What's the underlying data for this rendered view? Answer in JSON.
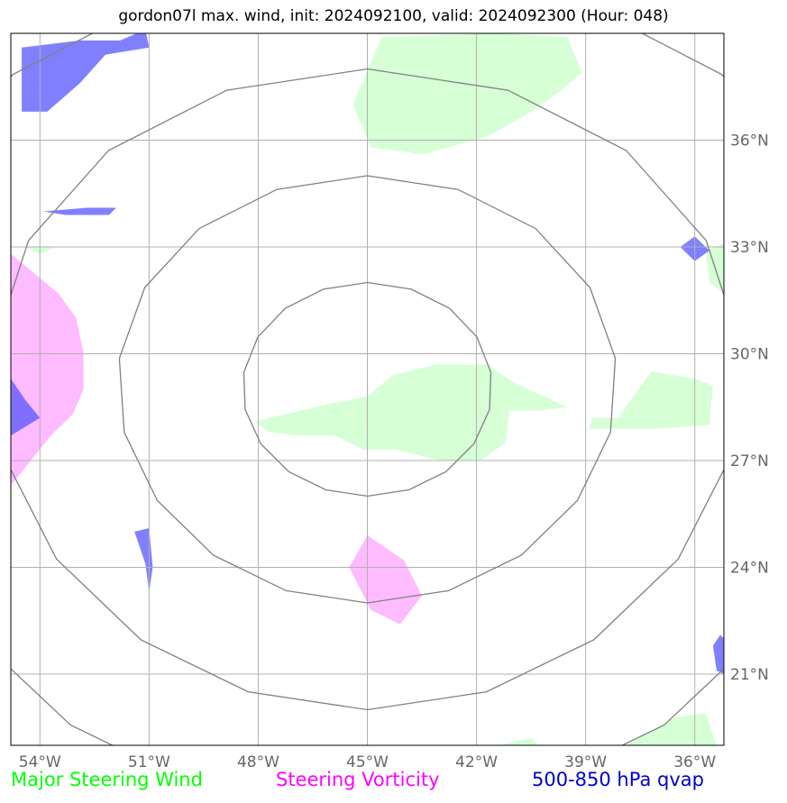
{
  "title": "gordon07l max. wind, init: 2024092100, valid: 2024092300 (Hour: 048)",
  "map": {
    "lon_range": [
      -54.8,
      -35.2
    ],
    "lat_range": [
      19.0,
      39.0
    ],
    "lon_ticks": [
      {
        "value": -54,
        "label": "54°W"
      },
      {
        "value": -51,
        "label": "51°W"
      },
      {
        "value": -48,
        "label": "48°W"
      },
      {
        "value": -45,
        "label": "45°W"
      },
      {
        "value": -42,
        "label": "42°W"
      },
      {
        "value": -39,
        "label": "39°W"
      },
      {
        "value": -36,
        "label": "36°W"
      }
    ],
    "lat_ticks": [
      {
        "value": 36,
        "label": "36°N"
      },
      {
        "value": 33,
        "label": "33°N"
      },
      {
        "value": 30,
        "label": "30°N"
      },
      {
        "value": 27,
        "label": "27°N"
      },
      {
        "value": 24,
        "label": "24°N"
      },
      {
        "value": 21,
        "label": "21°N"
      }
    ],
    "center": {
      "lon": -45,
      "lat": 29
    },
    "range_rings_deg": [
      3,
      6,
      9,
      12
    ],
    "ring_color": "#808080",
    "grid_color": "#b0b0b0"
  },
  "layers": {
    "steering_wind": {
      "color": "#ccffcc",
      "polygons": [
        [
          [
            -44.6,
            38.9
          ],
          [
            -41.4,
            39.0
          ],
          [
            -39.5,
            38.9
          ],
          [
            -39.1,
            37.9
          ],
          [
            -39.8,
            37.3
          ],
          [
            -40.5,
            36.8
          ],
          [
            -41.7,
            36.1
          ],
          [
            -43.5,
            35.6
          ],
          [
            -44.9,
            35.8
          ],
          [
            -45.4,
            37.0
          ]
        ],
        [
          [
            -48.1,
            28.1
          ],
          [
            -47.7,
            27.8
          ],
          [
            -46.9,
            27.7
          ],
          [
            -45.9,
            27.7
          ],
          [
            -45.1,
            27.3
          ],
          [
            -44.2,
            27.3
          ],
          [
            -43.0,
            27.0
          ],
          [
            -41.9,
            27.0
          ],
          [
            -41.2,
            27.5
          ],
          [
            -41.1,
            28.4
          ],
          [
            -40.3,
            28.4
          ],
          [
            -39.5,
            28.5
          ],
          [
            -41.0,
            29.2
          ],
          [
            -41.7,
            29.7
          ],
          [
            -43.1,
            29.7
          ],
          [
            -44.3,
            29.4
          ],
          [
            -45.0,
            28.8
          ],
          [
            -46.0,
            28.6
          ]
        ],
        [
          [
            -38.8,
            28.2
          ],
          [
            -38.1,
            28.2
          ],
          [
            -37.2,
            29.5
          ],
          [
            -36.0,
            29.3
          ],
          [
            -35.5,
            29.1
          ],
          [
            -35.6,
            28.0
          ],
          [
            -37.0,
            27.9
          ],
          [
            -38.9,
            27.9
          ]
        ],
        [
          [
            -35.7,
            32.9
          ],
          [
            -35.2,
            33.1
          ],
          [
            -35.2,
            31.7
          ],
          [
            -35.6,
            32.0
          ]
        ],
        [
          [
            -54.4,
            33.0
          ],
          [
            -53.6,
            33.0
          ],
          [
            -54.0,
            32.8
          ]
        ],
        [
          [
            -37.9,
            19.0
          ],
          [
            -36.5,
            19.8
          ],
          [
            -35.7,
            19.9
          ],
          [
            -35.4,
            19.0
          ]
        ],
        [
          [
            -41.4,
            19.0
          ],
          [
            -40.5,
            19.2
          ],
          [
            -40.3,
            19.0
          ]
        ]
      ]
    },
    "steering_vorticity": {
      "color": "#ffaaff",
      "polygons": [
        [
          [
            -54.8,
            32.8
          ],
          [
            -53.5,
            31.7
          ],
          [
            -53.0,
            31.0
          ],
          [
            -52.8,
            30.0
          ],
          [
            -52.8,
            29.0
          ],
          [
            -53.1,
            28.3
          ],
          [
            -53.7,
            27.7
          ],
          [
            -54.8,
            26.3
          ]
        ],
        [
          [
            -45.5,
            24.0
          ],
          [
            -45.0,
            24.9
          ],
          [
            -44.0,
            24.2
          ],
          [
            -43.5,
            23.2
          ],
          [
            -44.1,
            22.4
          ],
          [
            -44.9,
            22.8
          ],
          [
            -45.3,
            23.6
          ]
        ]
      ]
    },
    "qvap": {
      "color": "#5555ff",
      "polygons": [
        [
          [
            -54.5,
            38.6
          ],
          [
            -52.9,
            38.8
          ],
          [
            -51.8,
            38.8
          ],
          [
            -51.1,
            39.1
          ],
          [
            -51.0,
            38.6
          ],
          [
            -52.2,
            38.4
          ],
          [
            -52.9,
            37.6
          ],
          [
            -53.8,
            36.8
          ],
          [
            -54.5,
            36.8
          ]
        ],
        [
          [
            -53.9,
            34.0
          ],
          [
            -52.7,
            34.1
          ],
          [
            -51.9,
            34.1
          ],
          [
            -52.1,
            33.9
          ],
          [
            -53.3,
            33.9
          ]
        ],
        [
          [
            -36.4,
            33.0
          ],
          [
            -36.0,
            33.3
          ],
          [
            -35.6,
            32.9
          ],
          [
            -36.0,
            32.6
          ]
        ],
        [
          [
            -51.4,
            25.0
          ],
          [
            -51.0,
            25.1
          ],
          [
            -50.9,
            24.0
          ],
          [
            -51.0,
            23.3
          ],
          [
            -51.1,
            24.1
          ]
        ],
        [
          [
            -35.5,
            21.8
          ],
          [
            -35.4,
            21.1
          ],
          [
            -35.2,
            21.0
          ],
          [
            -35.2,
            22.0
          ],
          [
            -35.3,
            22.1
          ]
        ],
        [
          [
            -54.8,
            29.3
          ],
          [
            -54.4,
            28.7
          ],
          [
            -54.0,
            28.2
          ],
          [
            -54.8,
            27.7
          ]
        ]
      ]
    }
  },
  "legend": [
    {
      "label": "Major Steering Wind",
      "color": "#00ff00"
    },
    {
      "label": "Steering Vorticity",
      "color": "#ff00ff"
    },
    {
      "label": "500-850 hPa qvap",
      "color": "#0000cc"
    }
  ]
}
